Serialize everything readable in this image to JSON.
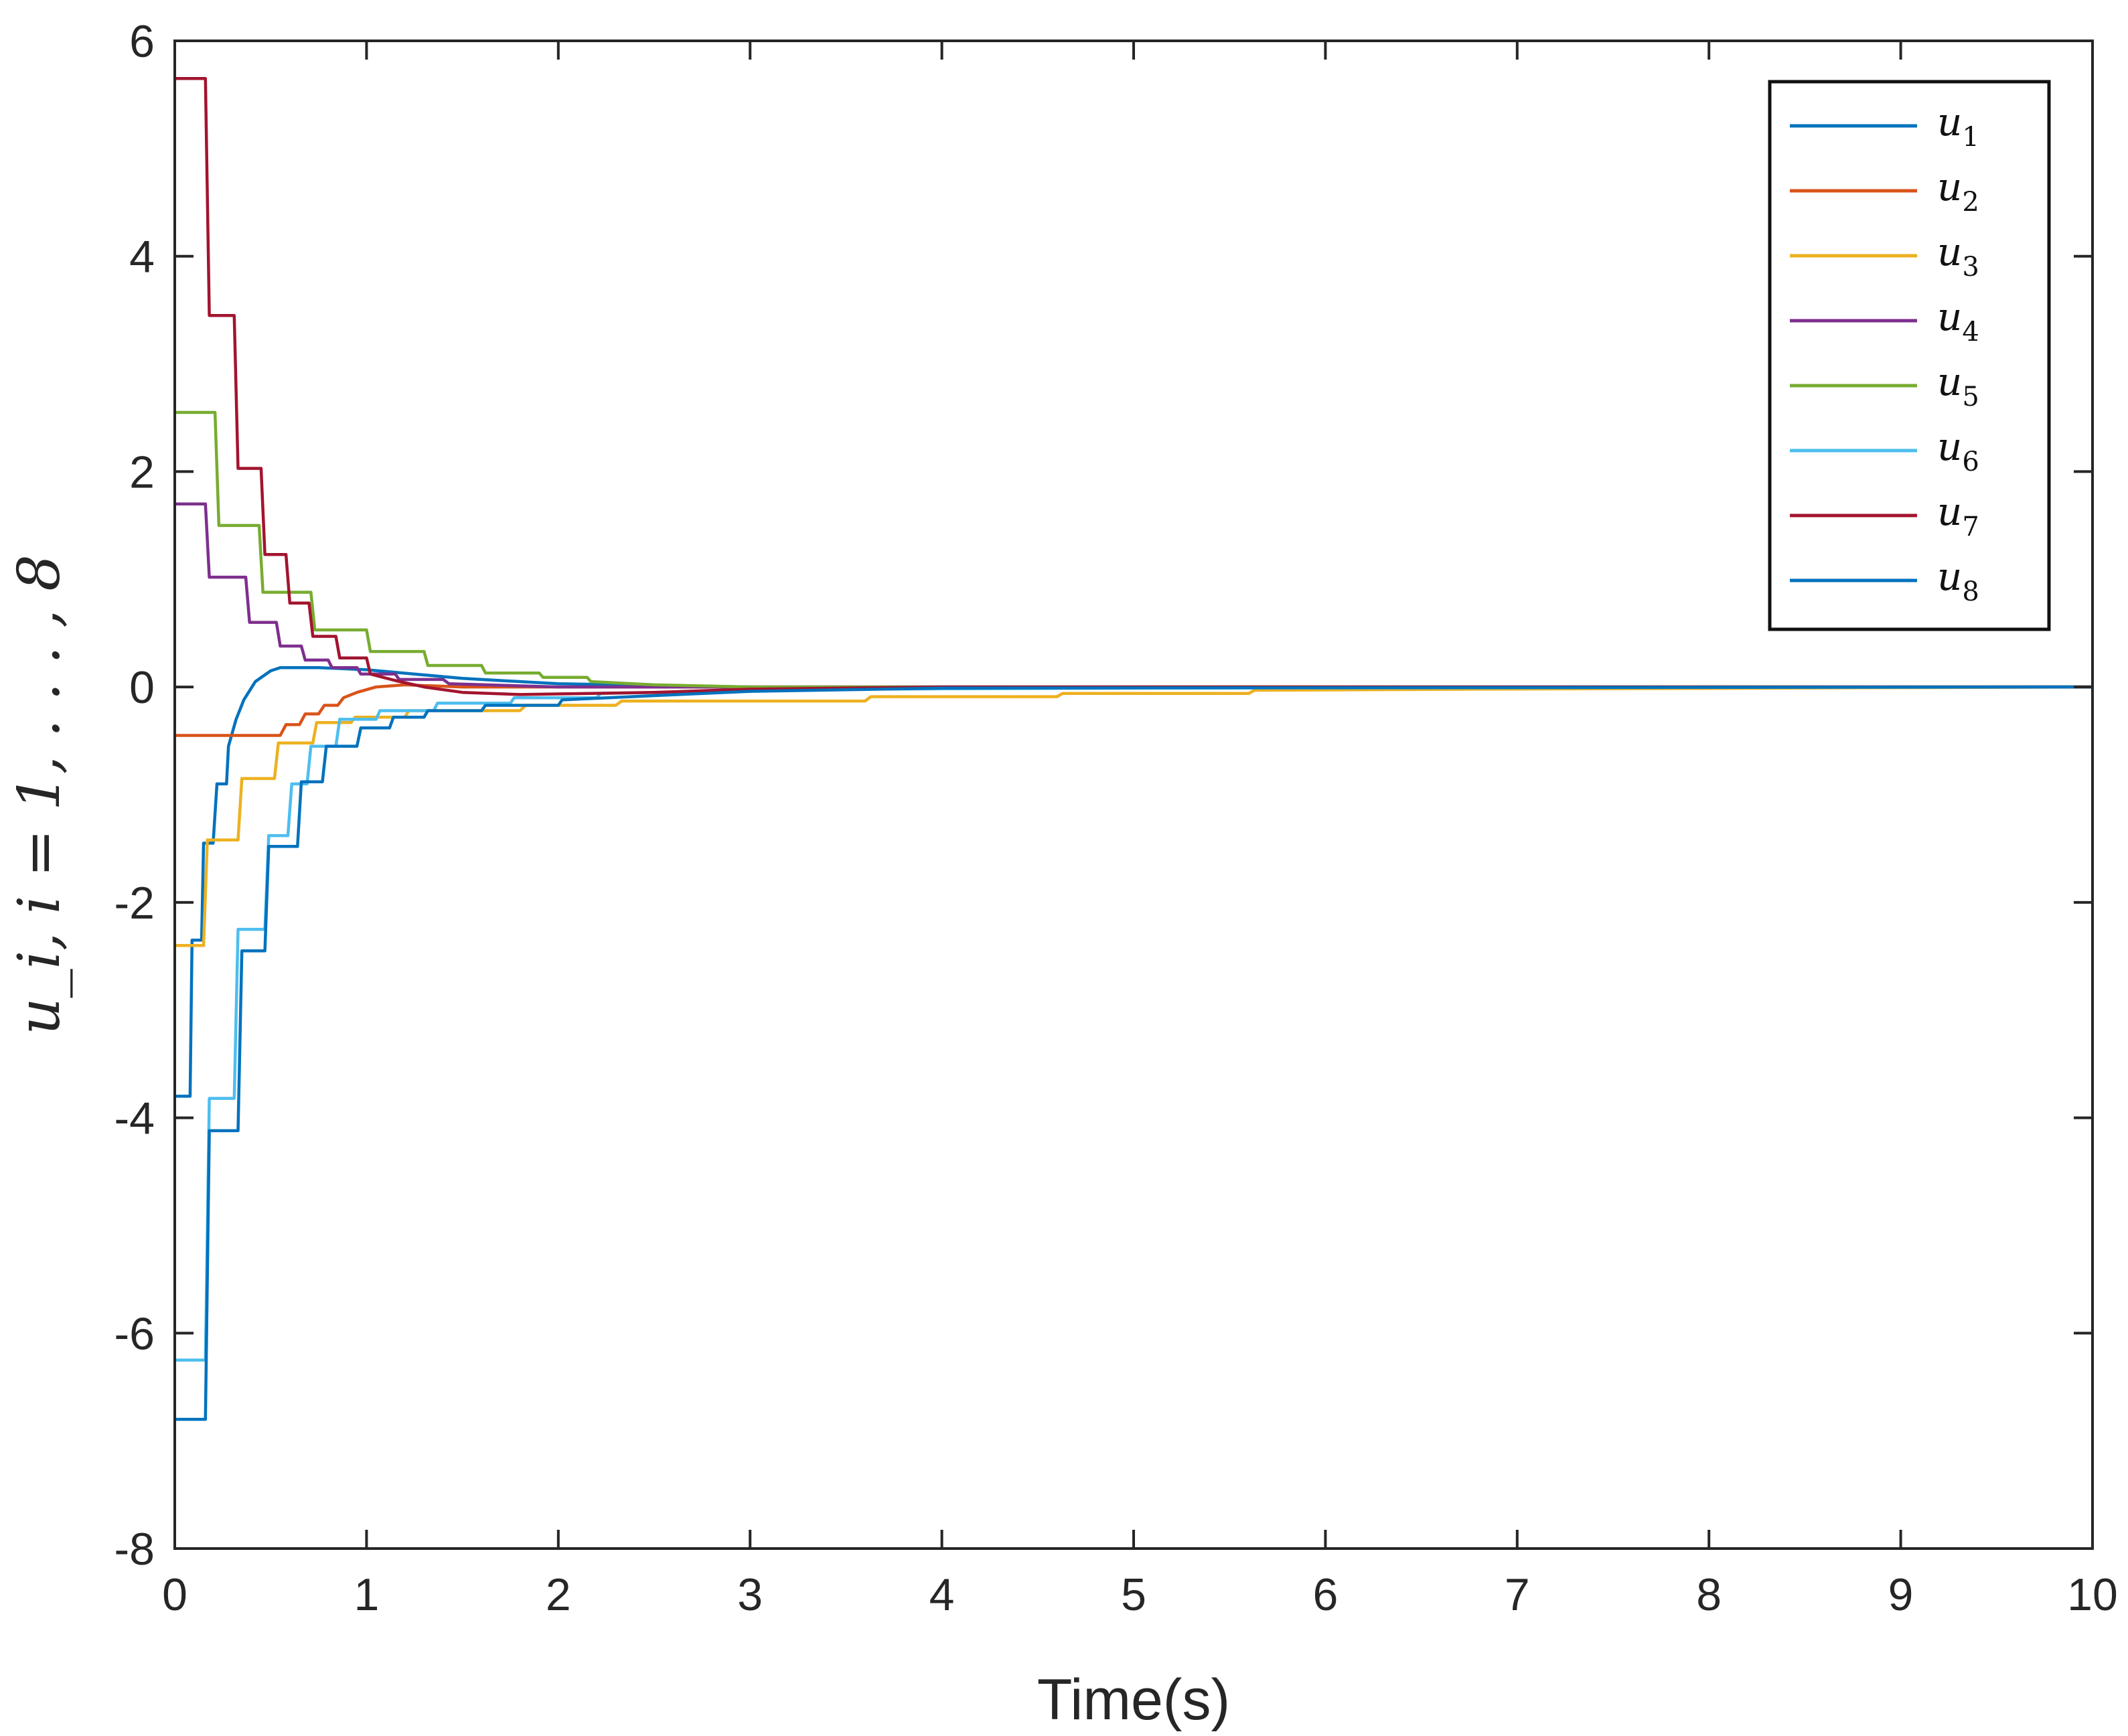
{
  "chart_data": {
    "type": "line",
    "title": "",
    "xlabel": "Time(s)",
    "ylabel": "u_i, i = 1, . . . , 8",
    "xlim": [
      0,
      10
    ],
    "ylim": [
      -8,
      6
    ],
    "xticks": [
      0,
      1,
      2,
      3,
      4,
      5,
      6,
      7,
      8,
      9,
      10
    ],
    "yticks": [
      -8,
      -6,
      -4,
      -2,
      0,
      2,
      4,
      6
    ],
    "grid": false,
    "legend_position": "top-right",
    "series": [
      {
        "name": "u",
        "sub": "1",
        "color": "#0072BD",
        "points": [
          [
            0,
            -3.8
          ],
          [
            0.08,
            -3.8
          ],
          [
            0.09,
            -2.35
          ],
          [
            0.14,
            -2.35
          ],
          [
            0.15,
            -1.45
          ],
          [
            0.2,
            -1.45
          ],
          [
            0.22,
            -0.9
          ],
          [
            0.27,
            -0.9
          ],
          [
            0.28,
            -0.55
          ],
          [
            0.32,
            -0.3
          ],
          [
            0.36,
            -0.12
          ],
          [
            0.42,
            0.05
          ],
          [
            0.5,
            0.15
          ],
          [
            0.55,
            0.18
          ],
          [
            0.75,
            0.18
          ],
          [
            1.0,
            0.16
          ],
          [
            1.5,
            0.08
          ],
          [
            2.0,
            0.03
          ],
          [
            3.0,
            0.0
          ],
          [
            10,
            0.0
          ]
        ]
      },
      {
        "name": "u",
        "sub": "2",
        "color": "#D95319",
        "points": [
          [
            0,
            -0.45
          ],
          [
            0.55,
            -0.45
          ],
          [
            0.58,
            -0.35
          ],
          [
            0.65,
            -0.35
          ],
          [
            0.68,
            -0.25
          ],
          [
            0.75,
            -0.25
          ],
          [
            0.78,
            -0.17
          ],
          [
            0.85,
            -0.17
          ],
          [
            0.88,
            -0.1
          ],
          [
            0.95,
            -0.05
          ],
          [
            1.05,
            0.0
          ],
          [
            1.2,
            0.02
          ],
          [
            1.5,
            0.0
          ],
          [
            2.5,
            0.0
          ],
          [
            10,
            0.0
          ]
        ]
      },
      {
        "name": "u",
        "sub": "3",
        "color": "#EDB120",
        "points": [
          [
            0,
            -2.4
          ],
          [
            0.15,
            -2.4
          ],
          [
            0.17,
            -1.42
          ],
          [
            0.33,
            -1.42
          ],
          [
            0.35,
            -0.85
          ],
          [
            0.52,
            -0.85
          ],
          [
            0.54,
            -0.52
          ],
          [
            0.72,
            -0.52
          ],
          [
            0.74,
            -0.33
          ],
          [
            0.92,
            -0.33
          ],
          [
            0.94,
            -0.28
          ],
          [
            1.2,
            -0.28
          ],
          [
            1.22,
            -0.22
          ],
          [
            1.8,
            -0.22
          ],
          [
            1.83,
            -0.17
          ],
          [
            2.3,
            -0.17
          ],
          [
            2.33,
            -0.13
          ],
          [
            3.6,
            -0.13
          ],
          [
            3.63,
            -0.09
          ],
          [
            4.6,
            -0.09
          ],
          [
            4.63,
            -0.06
          ],
          [
            5.6,
            -0.06
          ],
          [
            5.63,
            -0.03
          ],
          [
            6.8,
            -0.02
          ],
          [
            10,
            0.0
          ]
        ]
      },
      {
        "name": "u",
        "sub": "4",
        "color": "#7E2F8E",
        "points": [
          [
            0,
            1.7
          ],
          [
            0.16,
            1.7
          ],
          [
            0.18,
            1.02
          ],
          [
            0.37,
            1.02
          ],
          [
            0.39,
            0.6
          ],
          [
            0.53,
            0.6
          ],
          [
            0.55,
            0.38
          ],
          [
            0.66,
            0.38
          ],
          [
            0.68,
            0.25
          ],
          [
            0.8,
            0.25
          ],
          [
            0.82,
            0.18
          ],
          [
            0.95,
            0.18
          ],
          [
            0.97,
            0.12
          ],
          [
            1.15,
            0.12
          ],
          [
            1.17,
            0.07
          ],
          [
            1.4,
            0.07
          ],
          [
            1.43,
            0.03
          ],
          [
            2.0,
            0.0
          ],
          [
            10,
            0.0
          ]
        ]
      },
      {
        "name": "u",
        "sub": "5",
        "color": "#77AC30",
        "points": [
          [
            0,
            2.55
          ],
          [
            0.21,
            2.55
          ],
          [
            0.23,
            1.5
          ],
          [
            0.44,
            1.5
          ],
          [
            0.46,
            0.88
          ],
          [
            0.71,
            0.88
          ],
          [
            0.73,
            0.53
          ],
          [
            1.0,
            0.53
          ],
          [
            1.02,
            0.33
          ],
          [
            1.3,
            0.33
          ],
          [
            1.32,
            0.2
          ],
          [
            1.6,
            0.2
          ],
          [
            1.62,
            0.13
          ],
          [
            1.9,
            0.13
          ],
          [
            1.92,
            0.09
          ],
          [
            2.15,
            0.09
          ],
          [
            2.17,
            0.05
          ],
          [
            2.5,
            0.02
          ],
          [
            3.0,
            0.0
          ],
          [
            10,
            0.0
          ]
        ]
      },
      {
        "name": "u",
        "sub": "6",
        "color": "#4DBEEE",
        "points": [
          [
            0,
            -6.25
          ],
          [
            0.16,
            -6.25
          ],
          [
            0.18,
            -3.82
          ],
          [
            0.31,
            -3.82
          ],
          [
            0.33,
            -2.25
          ],
          [
            0.47,
            -2.25
          ],
          [
            0.49,
            -1.38
          ],
          [
            0.59,
            -1.38
          ],
          [
            0.61,
            -0.9
          ],
          [
            0.69,
            -0.9
          ],
          [
            0.71,
            -0.55
          ],
          [
            0.84,
            -0.55
          ],
          [
            0.86,
            -0.3
          ],
          [
            1.05,
            -0.3
          ],
          [
            1.07,
            -0.22
          ],
          [
            1.35,
            -0.22
          ],
          [
            1.37,
            -0.15
          ],
          [
            1.75,
            -0.15
          ],
          [
            1.77,
            -0.1
          ],
          [
            2.2,
            -0.1
          ],
          [
            2.22,
            -0.06
          ],
          [
            2.8,
            -0.04
          ],
          [
            3.5,
            -0.02
          ],
          [
            5.0,
            -0.01
          ],
          [
            10,
            0.0
          ]
        ]
      },
      {
        "name": "u",
        "sub": "7",
        "color": "#A2142F",
        "points": [
          [
            0,
            5.65
          ],
          [
            0.16,
            5.65
          ],
          [
            0.18,
            3.45
          ],
          [
            0.31,
            3.45
          ],
          [
            0.33,
            2.03
          ],
          [
            0.45,
            2.03
          ],
          [
            0.47,
            1.23
          ],
          [
            0.58,
            1.23
          ],
          [
            0.6,
            0.78
          ],
          [
            0.7,
            0.78
          ],
          [
            0.72,
            0.47
          ],
          [
            0.84,
            0.47
          ],
          [
            0.86,
            0.27
          ],
          [
            1.0,
            0.27
          ],
          [
            1.02,
            0.12
          ],
          [
            1.15,
            0.06
          ],
          [
            1.3,
            0.0
          ],
          [
            1.5,
            -0.05
          ],
          [
            1.8,
            -0.07
          ],
          [
            2.5,
            -0.05
          ],
          [
            3.0,
            -0.02
          ],
          [
            4.0,
            0.0
          ],
          [
            10,
            0.0
          ]
        ]
      },
      {
        "name": "u",
        "sub": "8",
        "color": "#0072BD",
        "points": [
          [
            0,
            -6.8
          ],
          [
            0.16,
            -6.8
          ],
          [
            0.18,
            -4.12
          ],
          [
            0.33,
            -4.12
          ],
          [
            0.35,
            -2.45
          ],
          [
            0.47,
            -2.45
          ],
          [
            0.49,
            -1.48
          ],
          [
            0.64,
            -1.48
          ],
          [
            0.66,
            -0.88
          ],
          [
            0.77,
            -0.88
          ],
          [
            0.79,
            -0.55
          ],
          [
            0.95,
            -0.55
          ],
          [
            0.97,
            -0.38
          ],
          [
            1.12,
            -0.38
          ],
          [
            1.14,
            -0.28
          ],
          [
            1.3,
            -0.28
          ],
          [
            1.32,
            -0.22
          ],
          [
            1.6,
            -0.22
          ],
          [
            1.62,
            -0.17
          ],
          [
            2.0,
            -0.17
          ],
          [
            2.02,
            -0.12
          ],
          [
            2.5,
            -0.08
          ],
          [
            3.0,
            -0.04
          ],
          [
            4.0,
            -0.01
          ],
          [
            10,
            0.0
          ]
        ]
      }
    ]
  }
}
